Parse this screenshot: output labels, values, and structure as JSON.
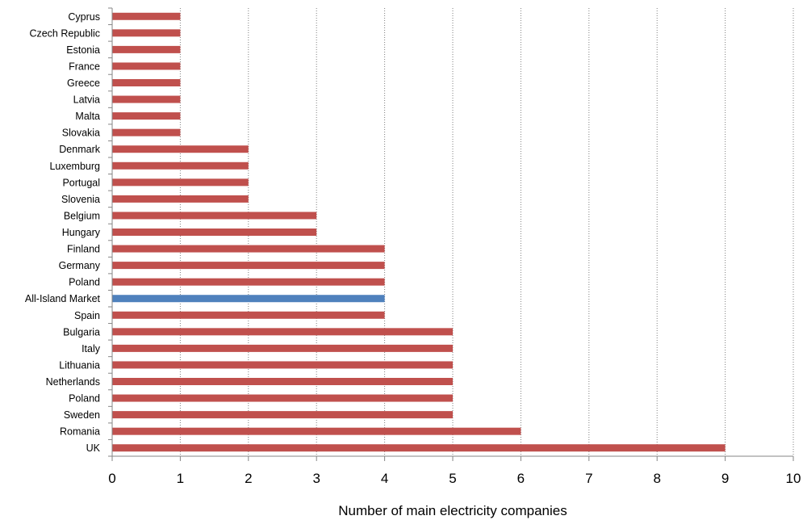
{
  "chart_data": {
    "type": "bar",
    "orientation": "horizontal",
    "title": "",
    "xlabel": "Number of main electricity companies",
    "ylabel": "",
    "xlim": [
      0,
      10
    ],
    "xticks": [
      "0",
      "1",
      "2",
      "3",
      "4",
      "5",
      "6",
      "7",
      "8",
      "9",
      "10"
    ],
    "grid": "vertical dotted gridlines",
    "legend": "none",
    "colors": {
      "default": "#C0504D",
      "highlight": "#4F81BD",
      "grid": "#7f7f7f",
      "axis": "#868686"
    },
    "highlight_category": "All-Island Market",
    "categories": [
      "Cyprus",
      "Czech Republic",
      "Estonia",
      "France",
      "Greece",
      "Latvia",
      "Malta",
      "Slovakia",
      "Denmark",
      "Luxemburg",
      "Portugal",
      "Slovenia",
      "Belgium",
      "Hungary",
      "Finland",
      "Germany",
      "Poland",
      "All-Island Market",
      "Spain",
      "Bulgaria",
      "Italy",
      "Lithuania",
      "Netherlands",
      "Poland",
      "Sweden",
      "Romania",
      "UK"
    ],
    "values": [
      1,
      1,
      1,
      1,
      1,
      1,
      1,
      1,
      2,
      2,
      2,
      2,
      3,
      3,
      4,
      4,
      4,
      4,
      4,
      5,
      5,
      5,
      5,
      5,
      5,
      6,
      9
    ]
  }
}
